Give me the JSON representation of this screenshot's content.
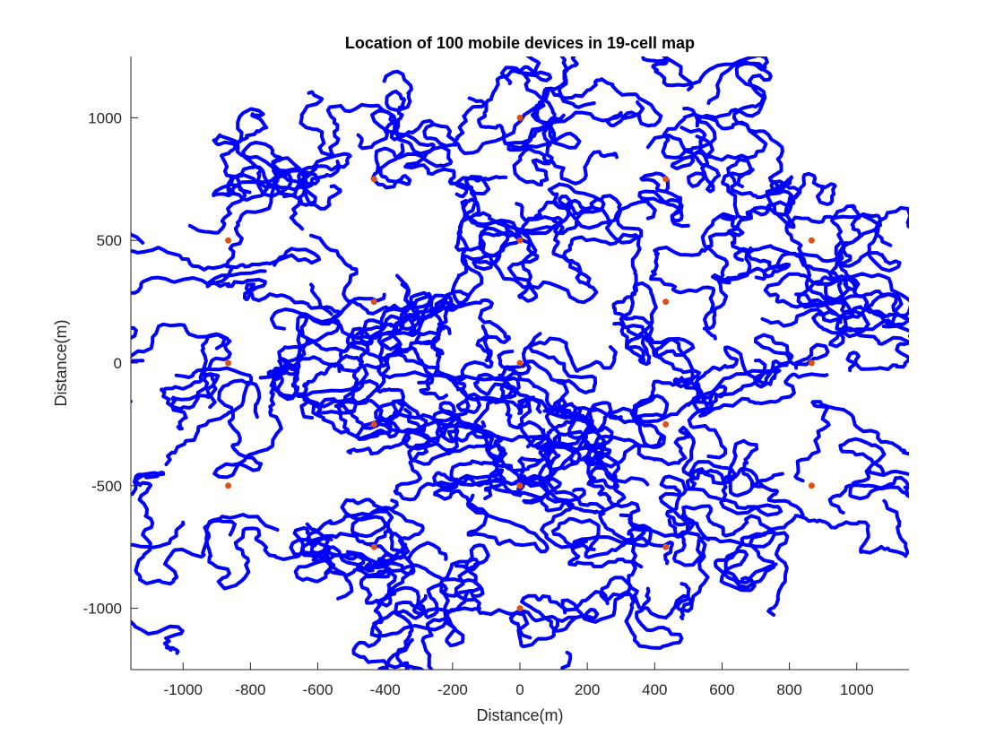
{
  "chart_data": {
    "type": "scatter",
    "title": "Location of 100 mobile devices in 19-cell map",
    "xlabel": "Distance(m)",
    "ylabel": "Distance(m)",
    "xlim": [
      -1155,
      1155
    ],
    "ylim": [
      -1250,
      1250
    ],
    "xticks": [
      -1000,
      -800,
      -600,
      -400,
      -200,
      0,
      200,
      400,
      600,
      800,
      1000
    ],
    "yticks": [
      -1000,
      -500,
      0,
      500,
      1000
    ],
    "grid": false,
    "legend": "none",
    "colors": {
      "trajectory": "#0000ff",
      "base_station": "#d95319"
    },
    "base_stations": [
      {
        "x": 0,
        "y": 0
      },
      {
        "x": 0,
        "y": 500
      },
      {
        "x": 433,
        "y": 250
      },
      {
        "x": 433,
        "y": -250
      },
      {
        "x": 0,
        "y": -500
      },
      {
        "x": -433,
        "y": -250
      },
      {
        "x": -433,
        "y": 250
      },
      {
        "x": 0,
        "y": 1000
      },
      {
        "x": 433,
        "y": 750
      },
      {
        "x": 866,
        "y": 500
      },
      {
        "x": 866,
        "y": 0
      },
      {
        "x": 866,
        "y": -500
      },
      {
        "x": 433,
        "y": -750
      },
      {
        "x": 0,
        "y": -1000
      },
      {
        "x": -433,
        "y": -750
      },
      {
        "x": -866,
        "y": -500
      },
      {
        "x": -866,
        "y": 0
      },
      {
        "x": -866,
        "y": 500
      },
      {
        "x": -433,
        "y": 750
      }
    ],
    "trajectory_seeds": [
      [
        -1120,
        490
      ],
      [
        -980,
        560
      ],
      [
        -870,
        690
      ],
      [
        -700,
        680
      ],
      [
        -560,
        720
      ],
      [
        -620,
        520
      ],
      [
        -480,
        930
      ],
      [
        -350,
        890
      ],
      [
        -260,
        980
      ],
      [
        -150,
        1080
      ],
      [
        -30,
        1140
      ],
      [
        50,
        1050
      ],
      [
        130,
        1010
      ],
      [
        220,
        1060
      ],
      [
        300,
        1020
      ],
      [
        380,
        880
      ],
      [
        480,
        960
      ],
      [
        560,
        1060
      ],
      [
        -160,
        650
      ],
      [
        -10,
        650
      ],
      [
        100,
        580
      ],
      [
        -90,
        440
      ],
      [
        380,
        590
      ],
      [
        500,
        560
      ],
      [
        660,
        720
      ],
      [
        780,
        700
      ],
      [
        900,
        720
      ],
      [
        1020,
        600
      ],
      [
        1100,
        480
      ],
      [
        660,
        420
      ],
      [
        820,
        280
      ],
      [
        720,
        180
      ],
      [
        940,
        200
      ],
      [
        1080,
        150
      ],
      [
        980,
        -30
      ],
      [
        -1120,
        10
      ],
      [
        -1020,
        -50
      ],
      [
        -900,
        60
      ],
      [
        -770,
        -60
      ],
      [
        -700,
        140
      ],
      [
        -620,
        320
      ],
      [
        -560,
        200
      ],
      [
        -480,
        60
      ],
      [
        -360,
        180
      ],
      [
        -350,
        320
      ],
      [
        -220,
        270
      ],
      [
        -110,
        150
      ],
      [
        60,
        120
      ],
      [
        200,
        320
      ],
      [
        280,
        160
      ],
      [
        380,
        0
      ],
      [
        480,
        -60
      ],
      [
        580,
        100
      ],
      [
        700,
        10
      ],
      [
        820,
        -20
      ],
      [
        -300,
        -80
      ],
      [
        -160,
        -150
      ],
      [
        -60,
        -50
      ],
      [
        40,
        -140
      ],
      [
        -920,
        -180
      ],
      [
        -780,
        -220
      ],
      [
        -640,
        -150
      ],
      [
        -520,
        -280
      ],
      [
        -340,
        -190
      ],
      [
        -200,
        -320
      ],
      [
        60,
        -200
      ],
      [
        180,
        -280
      ],
      [
        300,
        -220
      ],
      [
        420,
        -300
      ],
      [
        560,
        -380
      ],
      [
        720,
        -500
      ],
      [
        840,
        -480
      ],
      [
        960,
        -610
      ],
      [
        1080,
        -450
      ],
      [
        -1000,
        -650
      ],
      [
        -860,
        -700
      ],
      [
        -720,
        -680
      ],
      [
        -560,
        -720
      ],
      [
        -380,
        -560
      ],
      [
        -340,
        -740
      ],
      [
        -220,
        -800
      ],
      [
        -140,
        -540
      ],
      [
        0,
        -540
      ],
      [
        160,
        -520
      ],
      [
        300,
        -620
      ],
      [
        220,
        -760
      ],
      [
        360,
        -830
      ],
      [
        480,
        -900
      ],
      [
        560,
        -720
      ],
      [
        660,
        -880
      ],
      [
        760,
        -820
      ],
      [
        840,
        -620
      ],
      [
        -540,
        -960
      ],
      [
        -420,
        -980
      ],
      [
        -280,
        -950
      ],
      [
        -120,
        -1000
      ],
      [
        30,
        -1120
      ],
      [
        140,
        -1180
      ],
      [
        260,
        -980
      ],
      [
        380,
        -920
      ]
    ],
    "trajectory_count": 100
  }
}
